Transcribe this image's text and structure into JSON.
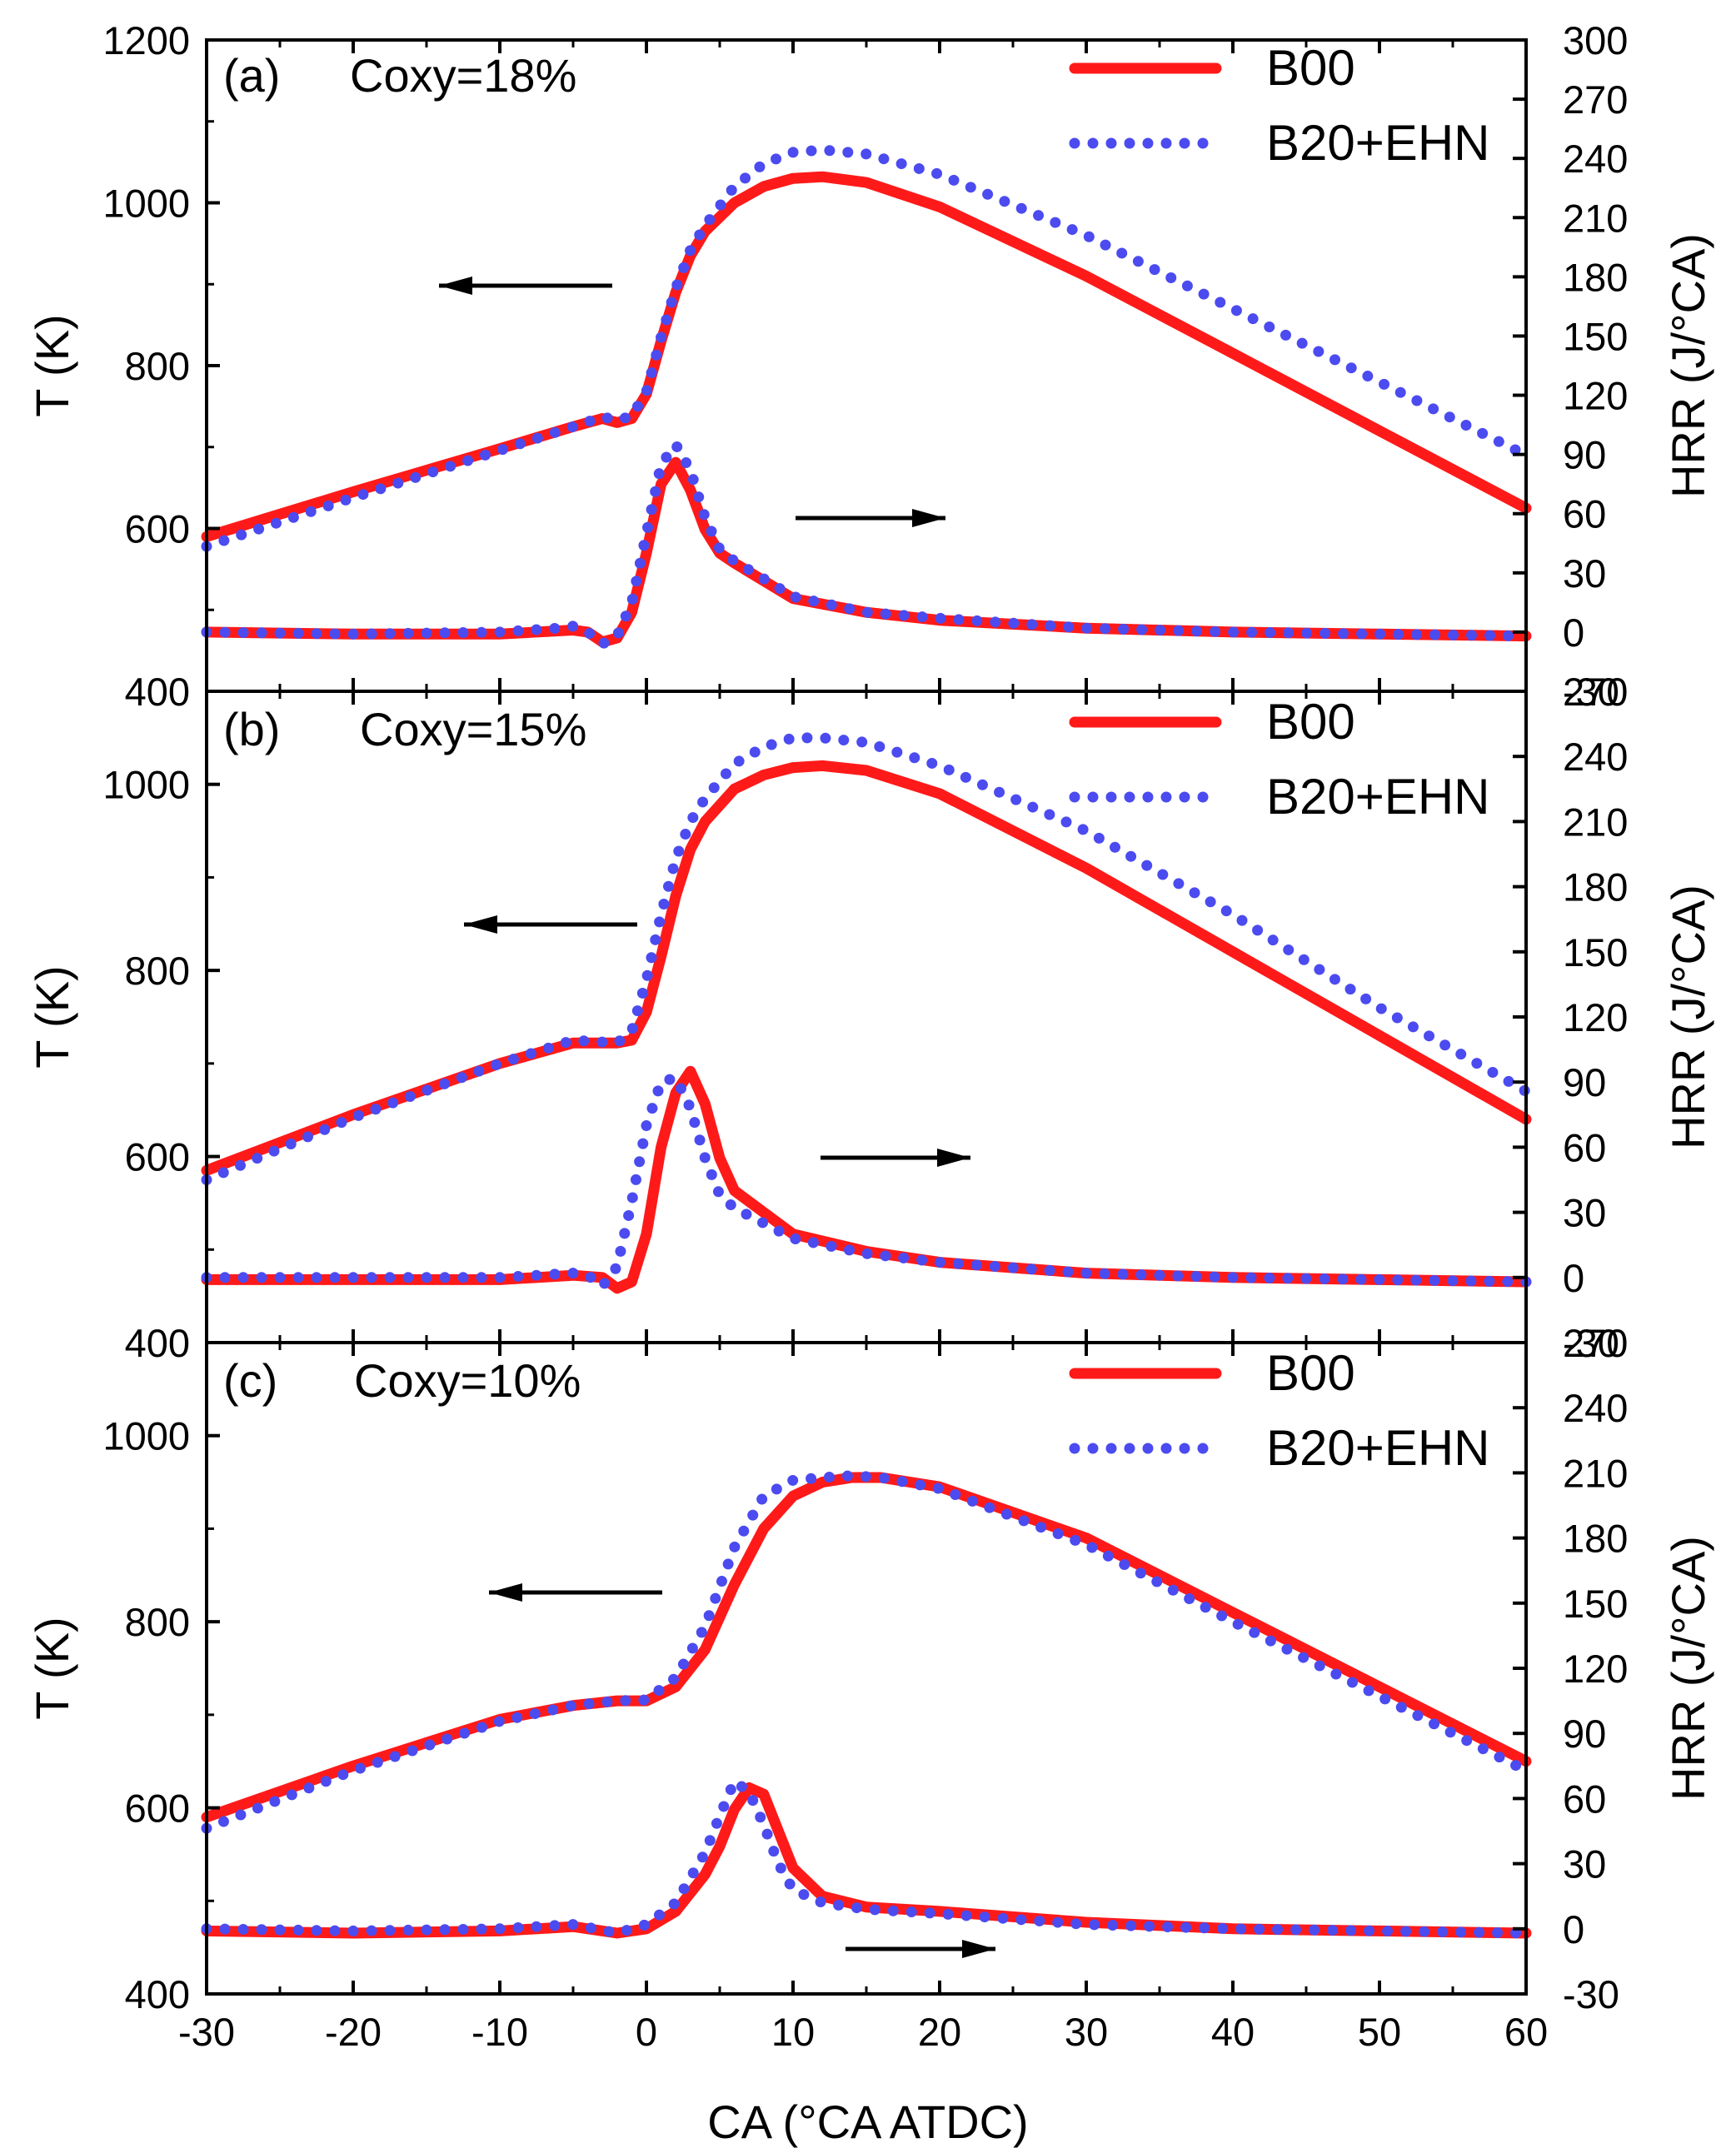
{
  "figure": {
    "x_axis_title": "CA (°CA ATDC)",
    "left_axis_title": "T (K)",
    "right_axis_title": "HRR (J/°CA)"
  },
  "colors": {
    "B00": "#ff1a1a",
    "B20_EHN": "#4b4bf0",
    "axis": "#000000"
  },
  "chart_data": [
    {
      "type": "line",
      "panel_label": "(a)",
      "condition": "Coxy=18%",
      "xlabel": "CA (°CA ATDC)",
      "xlim": [
        -30,
        60
      ],
      "xticks": [
        -30,
        -20,
        -10,
        0,
        10,
        20,
        30,
        40,
        50,
        60
      ],
      "y_left": {
        "label": "T (K)",
        "lim": [
          400,
          1200
        ],
        "ticks": [
          400,
          600,
          800,
          1000,
          1200
        ]
      },
      "y_right": {
        "label": "HRR (J/°CA)",
        "lim": [
          -30,
          300
        ],
        "ticks": [
          -30,
          0,
          30,
          60,
          90,
          120,
          150,
          180,
          210,
          240,
          270,
          300
        ]
      },
      "legend": [
        "B00",
        "B20+EHN"
      ],
      "series": [
        {
          "name": "B00",
          "quantity": "T",
          "axis": "left",
          "style": "solid",
          "x": [
            -30,
            -20,
            -10,
            -5,
            -3,
            -2,
            -1,
            0,
            1,
            2,
            3,
            4,
            6,
            8,
            10,
            12,
            15,
            20,
            30,
            40,
            50,
            60
          ],
          "y": [
            590,
            645,
            698,
            725,
            735,
            730,
            735,
            765,
            830,
            890,
            935,
            965,
            1000,
            1020,
            1030,
            1032,
            1025,
            995,
            910,
            815,
            720,
            625
          ]
        },
        {
          "name": "B20+EHN",
          "quantity": "T",
          "axis": "left",
          "style": "dotted",
          "x": [
            -30,
            -20,
            -10,
            -5,
            -3,
            -2,
            -1,
            0,
            1,
            2,
            3,
            4,
            6,
            8,
            10,
            12,
            15,
            20,
            30,
            40,
            50,
            60
          ],
          "y": [
            578,
            638,
            696,
            725,
            737,
            733,
            738,
            768,
            835,
            895,
            942,
            972,
            1020,
            1048,
            1062,
            1065,
            1060,
            1035,
            960,
            870,
            780,
            690
          ]
        },
        {
          "name": "B00",
          "quantity": "HRR",
          "axis": "right",
          "style": "solid",
          "x": [
            -30,
            -20,
            -10,
            -5,
            -4,
            -3,
            -2,
            -1,
            0,
            1,
            2,
            3,
            4,
            5,
            6,
            8,
            10,
            15,
            20,
            30,
            40,
            50,
            60
          ],
          "y": [
            0,
            -1,
            -1,
            1,
            0,
            -5,
            -3,
            10,
            40,
            75,
            86,
            72,
            52,
            40,
            35,
            26,
            17,
            10,
            6,
            2,
            0,
            -1,
            -2
          ]
        },
        {
          "name": "B20+EHN",
          "quantity": "HRR",
          "axis": "right",
          "style": "dotted",
          "x": [
            -30,
            -20,
            -10,
            -6,
            -5,
            -4,
            -3,
            -2,
            -1,
            0,
            1,
            2,
            3,
            4,
            5,
            6,
            8,
            10,
            15,
            20,
            30,
            40,
            50,
            60
          ],
          "y": [
            0,
            -1,
            0,
            2,
            3,
            0,
            -6,
            -2,
            15,
            50,
            85,
            95,
            82,
            58,
            42,
            36,
            27,
            18,
            10,
            7,
            2,
            0,
            -1,
            -2
          ]
        }
      ]
    },
    {
      "type": "line",
      "panel_label": "(b)",
      "condition": "Coxy=15%",
      "xlabel": "CA (°CA ATDC)",
      "xlim": [
        -30,
        60
      ],
      "xticks": [
        -30,
        -20,
        -10,
        0,
        10,
        20,
        30,
        40,
        50,
        60
      ],
      "y_left": {
        "label": "T (K)",
        "lim": [
          400,
          1100
        ],
        "ticks": [
          400,
          600,
          800,
          1000
        ]
      },
      "y_right": {
        "label": "HRR (J/°CA)",
        "lim": [
          -30,
          270
        ],
        "ticks": [
          -30,
          0,
          30,
          60,
          90,
          120,
          150,
          180,
          210,
          240,
          270
        ]
      },
      "legend": [
        "B00",
        "B20+EHN"
      ],
      "series": [
        {
          "name": "B00",
          "quantity": "T",
          "axis": "left",
          "style": "solid",
          "x": [
            -30,
            -20,
            -10,
            -5,
            -2,
            -1,
            0,
            1,
            2,
            3,
            4,
            6,
            8,
            10,
            12,
            15,
            20,
            30,
            40,
            50,
            60
          ],
          "y": [
            585,
            645,
            700,
            722,
            722,
            725,
            755,
            815,
            880,
            930,
            960,
            995,
            1010,
            1018,
            1020,
            1015,
            990,
            910,
            820,
            730,
            640
          ]
        },
        {
          "name": "B20+EHN",
          "quantity": "T",
          "axis": "left",
          "style": "dotted",
          "x": [
            -30,
            -20,
            -10,
            -5,
            -2,
            -1,
            0,
            1,
            2,
            3,
            4,
            6,
            8,
            10,
            12,
            15,
            20,
            30,
            40,
            50,
            60
          ],
          "y": [
            575,
            642,
            700,
            725,
            722,
            735,
            790,
            860,
            920,
            960,
            985,
            1022,
            1040,
            1050,
            1050,
            1045,
            1020,
            950,
            860,
            760,
            670
          ]
        },
        {
          "name": "B00",
          "quantity": "HRR",
          "axis": "right",
          "style": "solid",
          "x": [
            -30,
            -20,
            -10,
            -5,
            -3,
            -2,
            -1,
            0,
            1,
            2,
            3,
            4,
            5,
            6,
            8,
            10,
            15,
            20,
            30,
            40,
            50,
            60
          ],
          "y": [
            -1,
            -1,
            -1,
            1,
            0,
            -5,
            -2,
            20,
            60,
            85,
            95,
            80,
            55,
            40,
            30,
            20,
            12,
            7,
            2,
            0,
            -1,
            -2
          ]
        },
        {
          "name": "B20+EHN",
          "quantity": "HRR",
          "axis": "right",
          "style": "dotted",
          "x": [
            -30,
            -20,
            -10,
            -5,
            -4,
            -3,
            -2,
            -1,
            0,
            1,
            2,
            3,
            4,
            5,
            6,
            8,
            10,
            15,
            20,
            30,
            40,
            50,
            60
          ],
          "y": [
            0,
            0,
            0,
            2,
            1,
            -4,
            5,
            35,
            70,
            90,
            92,
            78,
            55,
            38,
            32,
            25,
            18,
            11,
            7,
            2,
            0,
            -1,
            -2
          ]
        }
      ]
    },
    {
      "type": "line",
      "panel_label": "(c)",
      "condition": "Coxy=10%",
      "xlabel": "CA (°CA ATDC)",
      "xlim": [
        -30,
        60
      ],
      "xticks": [
        -30,
        -20,
        -10,
        0,
        10,
        20,
        30,
        40,
        50,
        60
      ],
      "y_left": {
        "label": "T (K)",
        "lim": [
          400,
          1100
        ],
        "ticks": [
          400,
          600,
          800,
          1000
        ]
      },
      "y_right": {
        "label": "HRR (J/°CA)",
        "lim": [
          -30,
          270
        ],
        "ticks": [
          -30,
          0,
          30,
          60,
          90,
          120,
          150,
          180,
          210,
          240,
          270
        ]
      },
      "legend": [
        "B00",
        "B20+EHN"
      ],
      "series": [
        {
          "name": "B00",
          "quantity": "T",
          "axis": "left",
          "style": "solid",
          "x": [
            -30,
            -20,
            -10,
            -5,
            -2,
            0,
            2,
            4,
            6,
            8,
            10,
            12,
            14,
            16,
            20,
            30,
            40,
            50,
            60
          ],
          "y": [
            590,
            645,
            695,
            710,
            715,
            715,
            730,
            770,
            840,
            900,
            935,
            950,
            955,
            955,
            945,
            890,
            810,
            730,
            650
          ]
        },
        {
          "name": "B20+EHN",
          "quantity": "T",
          "axis": "left",
          "style": "dotted",
          "x": [
            -30,
            -20,
            -10,
            -5,
            -2,
            0,
            2,
            4,
            6,
            8,
            10,
            12,
            14,
            16,
            20,
            30,
            40,
            50,
            60
          ],
          "y": [
            578,
            640,
            693,
            710,
            715,
            716,
            740,
            795,
            880,
            935,
            952,
            955,
            957,
            955,
            943,
            883,
            800,
            720,
            640
          ]
        },
        {
          "name": "B00",
          "quantity": "HRR",
          "axis": "right",
          "style": "solid",
          "x": [
            -30,
            -20,
            -10,
            -5,
            -2,
            0,
            2,
            4,
            5,
            6,
            7,
            8,
            9,
            10,
            12,
            15,
            20,
            30,
            40,
            50,
            60
          ],
          "y": [
            -1,
            -2,
            -1,
            1,
            -2,
            0,
            8,
            25,
            38,
            55,
            65,
            62,
            45,
            28,
            15,
            10,
            8,
            3,
            0,
            -1,
            -2
          ]
        },
        {
          "name": "B20+EHN",
          "quantity": "HRR",
          "axis": "right",
          "style": "dotted",
          "x": [
            -30,
            -20,
            -10,
            -5,
            -2,
            0,
            2,
            4,
            5,
            6,
            7,
            8,
            9,
            10,
            12,
            15,
            20,
            30,
            40,
            50,
            60
          ],
          "y": [
            0,
            -1,
            0,
            2,
            -2,
            2,
            12,
            35,
            52,
            68,
            63,
            48,
            30,
            18,
            12,
            9,
            7,
            2,
            0,
            -1,
            -2
          ]
        }
      ]
    }
  ]
}
